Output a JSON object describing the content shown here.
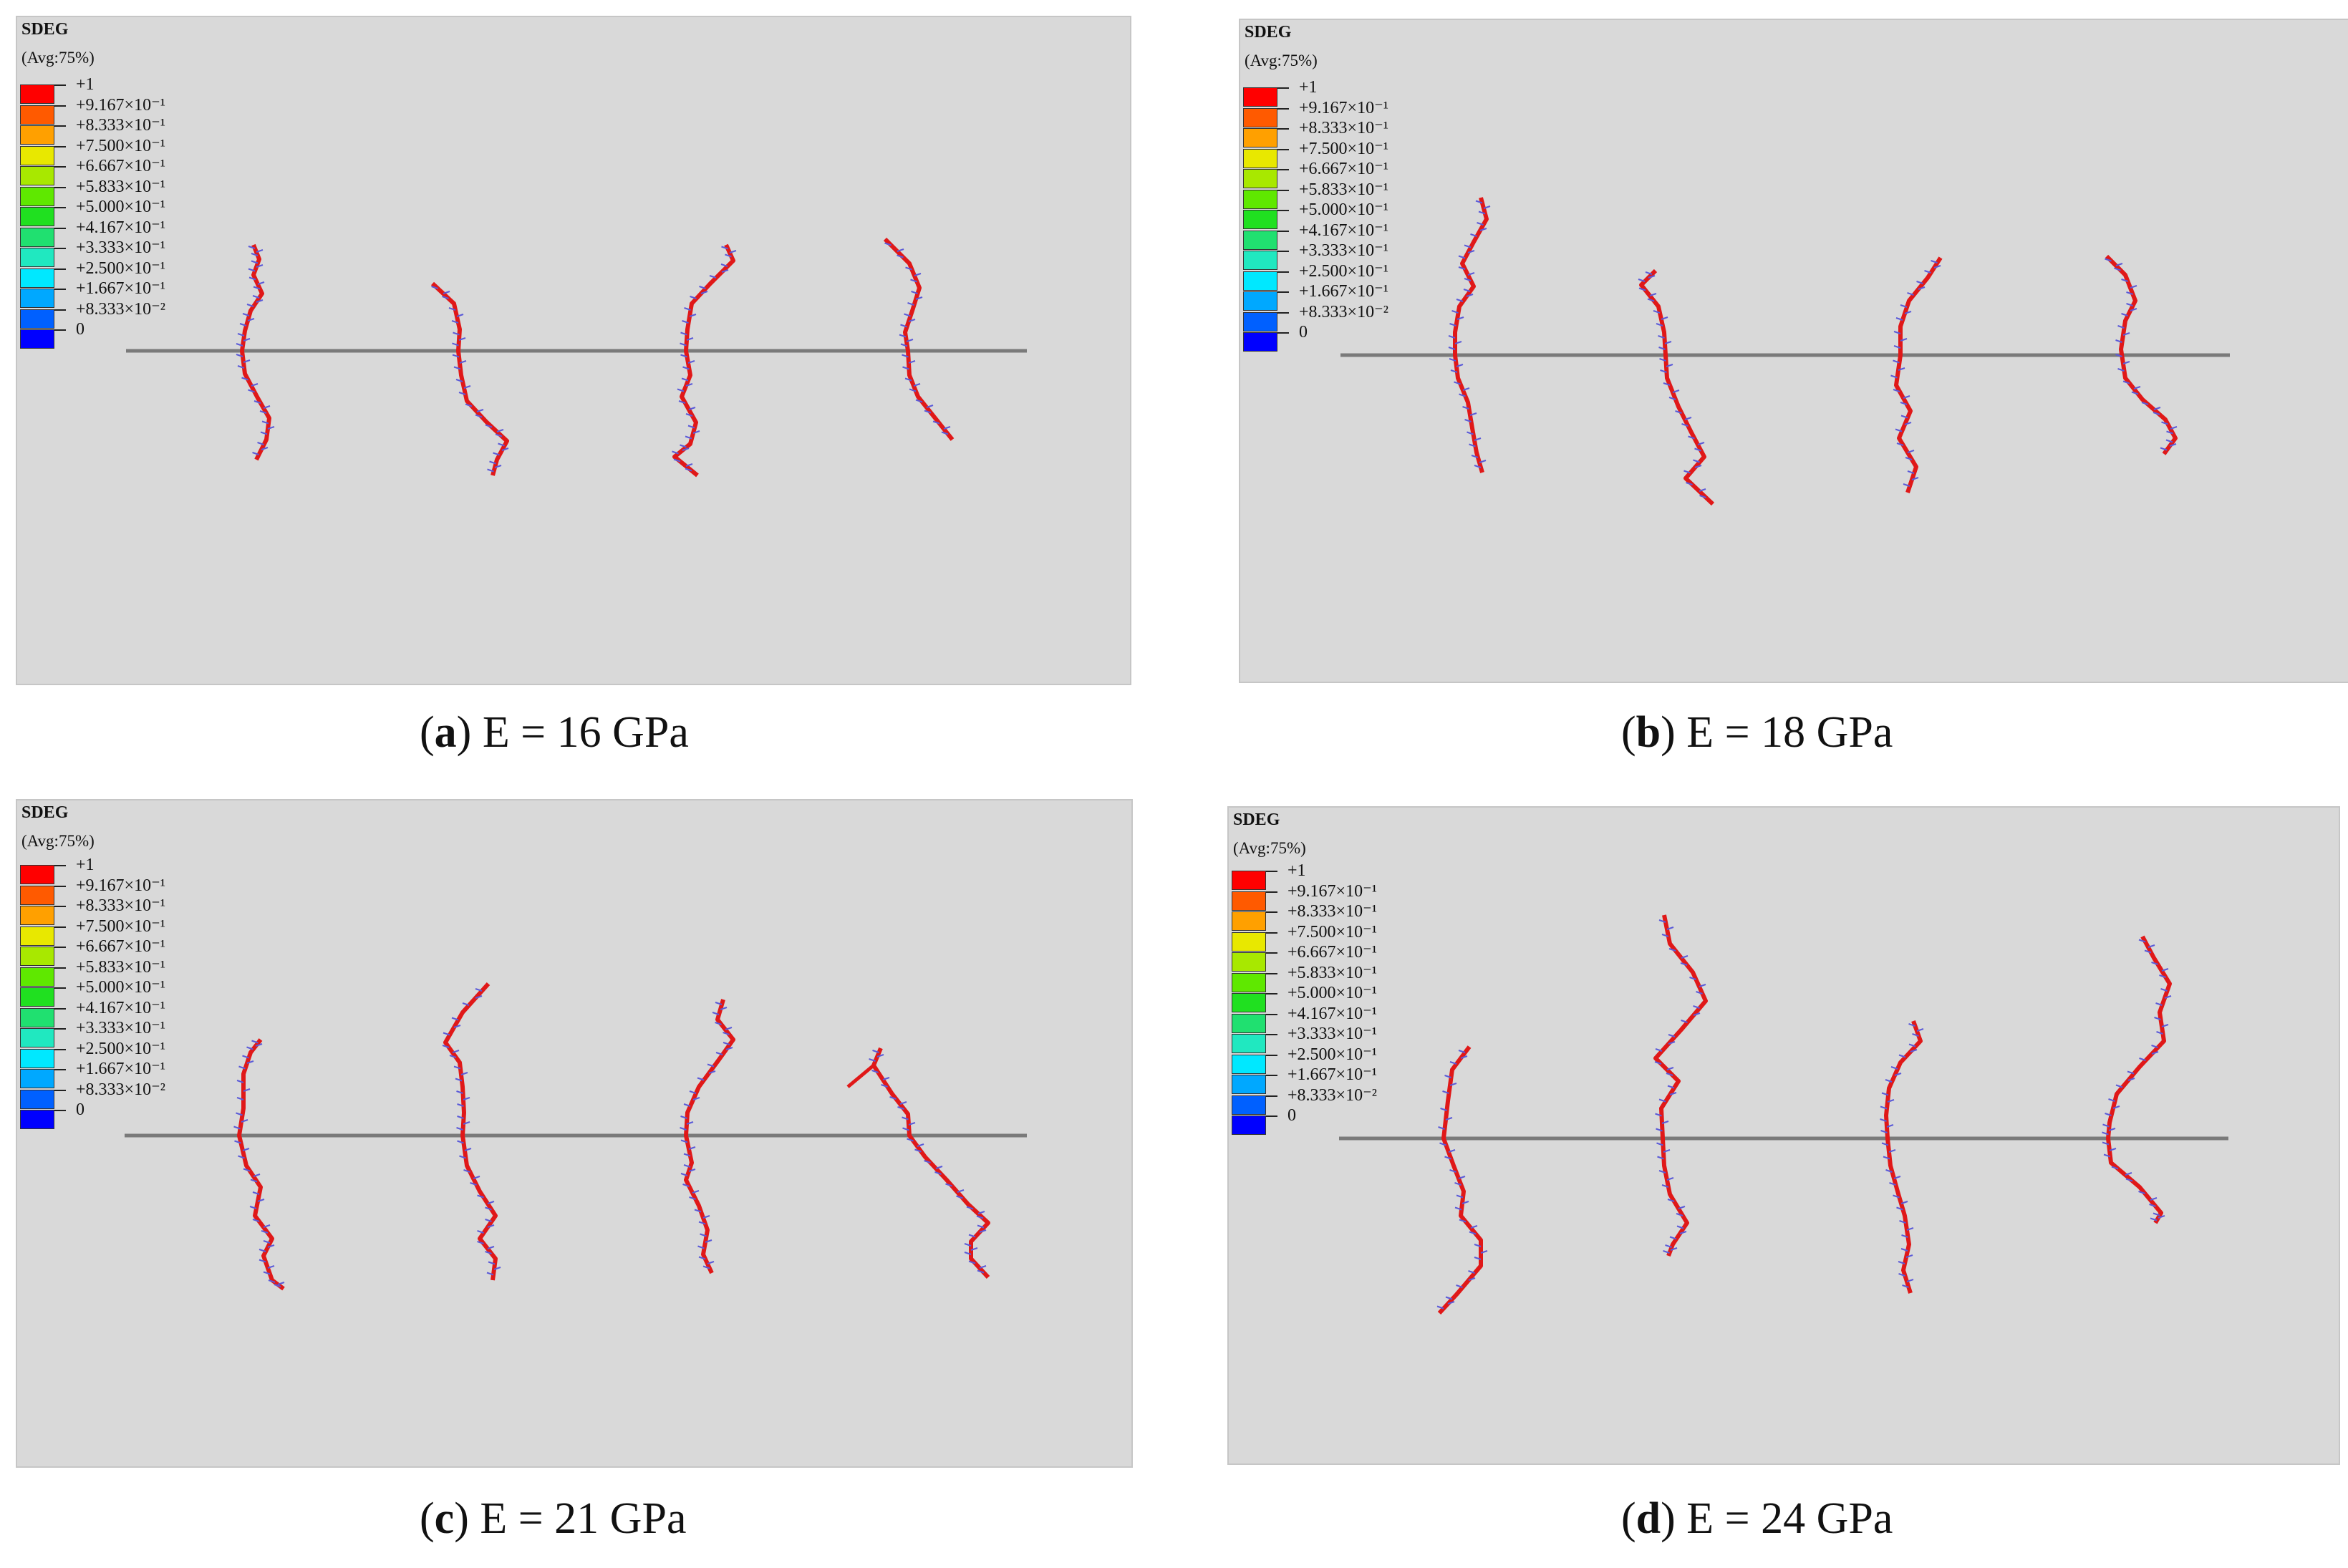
{
  "legend": {
    "title": "SDEG",
    "averaging": "(Avg:75%)",
    "labels": [
      "+1",
      "+9.167×10⁻¹",
      "+8.333×10⁻¹",
      "+7.500×10⁻¹",
      "+6.667×10⁻¹",
      "+5.833×10⁻¹",
      "+5.000×10⁻¹",
      "+4.167×10⁻¹",
      "+3.333×10⁻¹",
      "+2.500×10⁻¹",
      "+1.667×10⁻¹",
      "+8.333×10⁻²",
      "0"
    ],
    "colors": [
      "#ff0000",
      "#ff5a00",
      "#ffa000",
      "#e8e800",
      "#a8e800",
      "#5fe800",
      "#20e020",
      "#20e070",
      "#20e8c0",
      "#00e8ff",
      "#00a8ff",
      "#0060ff",
      "#0000ff"
    ]
  },
  "panels": [
    {
      "letter": "a",
      "caption": "E = 16 GPa"
    },
    {
      "letter": "b",
      "caption": "E = 18 GPa"
    },
    {
      "letter": "c",
      "caption": "E = 21 GPa"
    },
    {
      "letter": "d",
      "caption": "E = 24 GPa"
    }
  ]
}
